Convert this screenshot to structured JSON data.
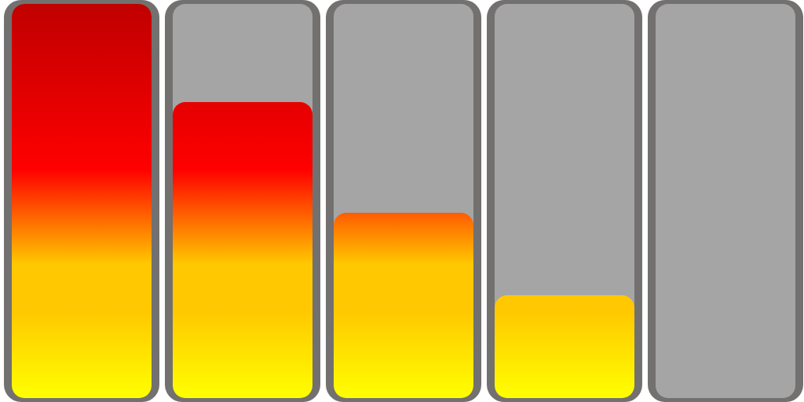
{
  "meters": [
    {
      "level": 1.0
    },
    {
      "level": 0.75
    },
    {
      "level": 0.47
    },
    {
      "level": 0.26
    },
    {
      "level": 0.0
    }
  ],
  "colors": {
    "frame": "#737070",
    "track": "#a5a5a5",
    "gradient_low": "#ffff00",
    "gradient_mid": "#ffc800",
    "gradient_high": "#ff0000",
    "gradient_top": "#c00000"
  }
}
